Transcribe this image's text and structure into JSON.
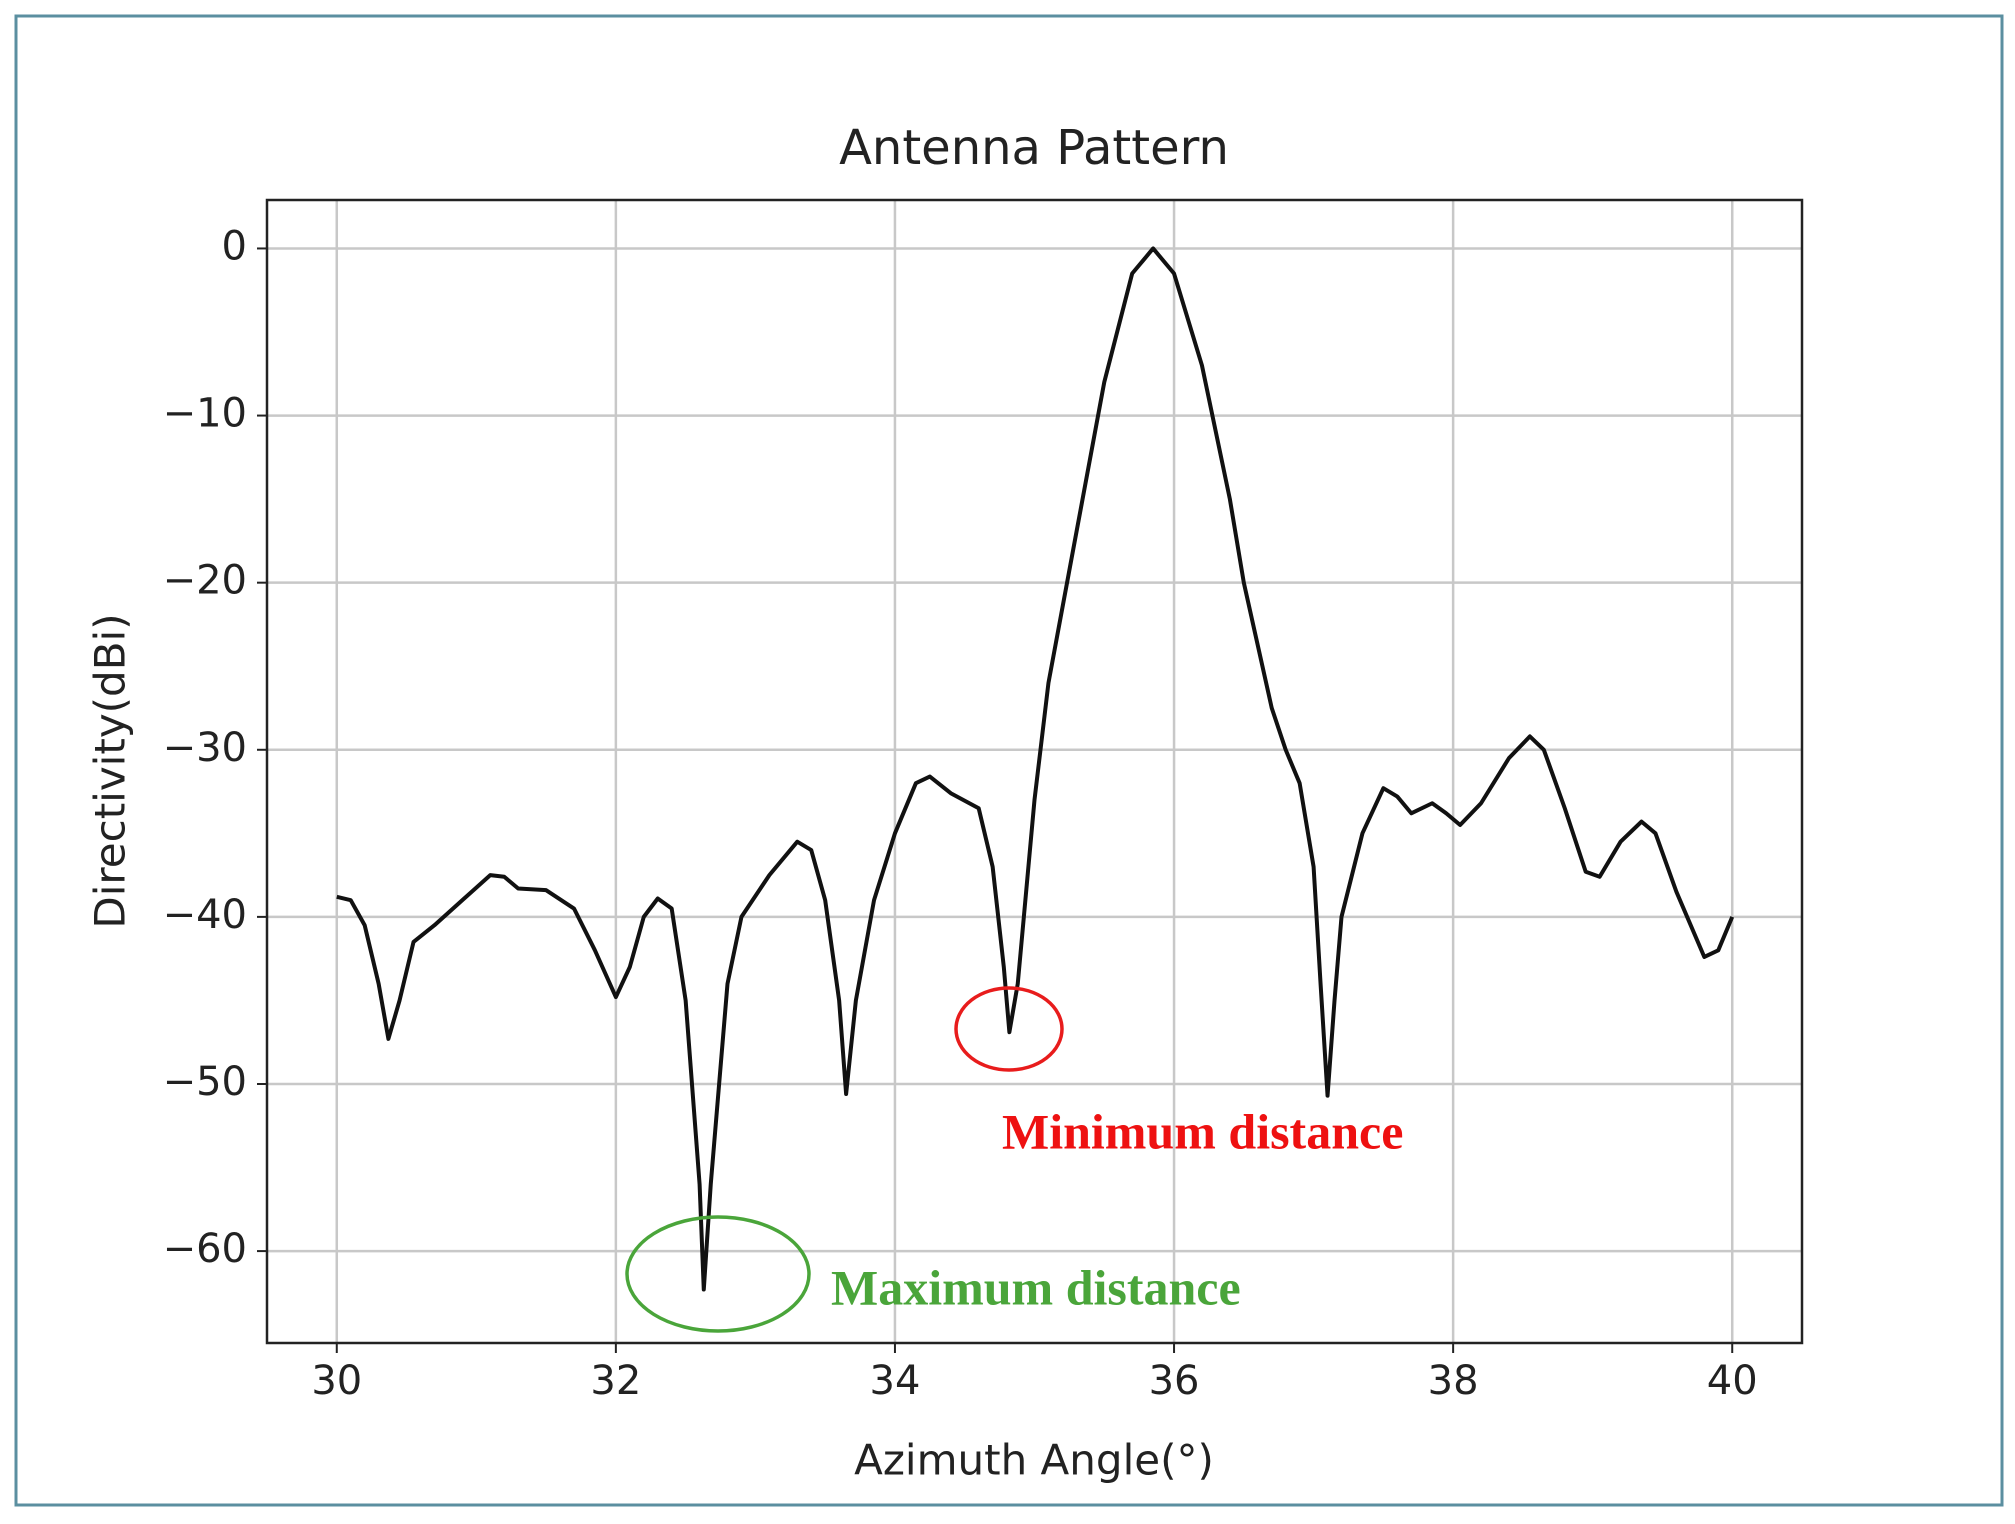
{
  "chart_data": {
    "type": "line",
    "title": "Antenna Pattern",
    "xlabel": "Azimuth Angle(°)",
    "ylabel": "Directivity(dBi)",
    "x": [
      30.0,
      30.1,
      30.2,
      30.3,
      30.37,
      30.45,
      30.55,
      30.7,
      30.9,
      31.1,
      31.2,
      31.3,
      31.5,
      31.7,
      31.85,
      32.0,
      32.1,
      32.2,
      32.3,
      32.4,
      32.5,
      32.6,
      32.63,
      32.68,
      32.8,
      32.9,
      33.1,
      33.3,
      33.4,
      33.5,
      33.6,
      33.65,
      33.72,
      33.85,
      34.0,
      34.15,
      34.25,
      34.4,
      34.6,
      34.7,
      34.78,
      34.82,
      34.88,
      35.0,
      35.1,
      35.3,
      35.5,
      35.7,
      35.85,
      36.0,
      36.2,
      36.4,
      36.5,
      36.7,
      36.8,
      36.9,
      37.0,
      37.05,
      37.1,
      37.15,
      37.2,
      37.35,
      37.5,
      37.6,
      37.7,
      37.85,
      37.95,
      38.05,
      38.2,
      38.4,
      38.55,
      38.65,
      38.8,
      38.95,
      39.05,
      39.2,
      39.35,
      39.45,
      39.6,
      39.8,
      39.9,
      40.0
    ],
    "series": [
      {
        "name": "Directivity",
        "color": "#111111",
        "values": [
          -38.8,
          -39.0,
          -40.5,
          -44,
          -47.3,
          -45,
          -41.5,
          -40.5,
          -39,
          -37.5,
          -37.6,
          -38.3,
          -38.4,
          -39.5,
          -42,
          -44.8,
          -43,
          -40,
          -38.9,
          -39.5,
          -45,
          -56,
          -62.3,
          -56,
          -44,
          -40,
          -37.5,
          -35.5,
          -36,
          -39,
          -45,
          -50.6,
          -45,
          -39,
          -35,
          -32,
          -31.6,
          -32.6,
          -33.5,
          -37,
          -43,
          -46.9,
          -44,
          -33,
          -26,
          -17,
          -8,
          -1.5,
          0,
          -1.5,
          -7,
          -15,
          -20,
          -27.5,
          -30,
          -32,
          -37,
          -44,
          -50.7,
          -45,
          -40,
          -35,
          -32.3,
          -32.8,
          -33.8,
          -33.2,
          -33.8,
          -34.5,
          -33.2,
          -30.5,
          -29.2,
          -30,
          -33.5,
          -37.3,
          -37.6,
          -35.5,
          -34.3,
          -35,
          -38.5,
          -42.4,
          -42,
          -40
        ]
      }
    ],
    "xlim": [
      29.5,
      40.5
    ],
    "xticks": [
      30,
      32,
      34,
      36,
      38,
      40
    ],
    "ylim": [
      -65.5,
      2.9
    ],
    "yticks": [
      0,
      {
        "value": -10,
        "label": "−10"
      },
      {
        "value": -20,
        "label": "−20"
      },
      {
        "value": -30,
        "label": "−30"
      },
      {
        "value": -40,
        "label": "−40"
      },
      {
        "value": -50,
        "label": "−50"
      },
      {
        "value": -60,
        "label": "−60"
      }
    ],
    "grid": true,
    "annotations": [
      "Minimum distance",
      "Maximum distance"
    ]
  }
}
